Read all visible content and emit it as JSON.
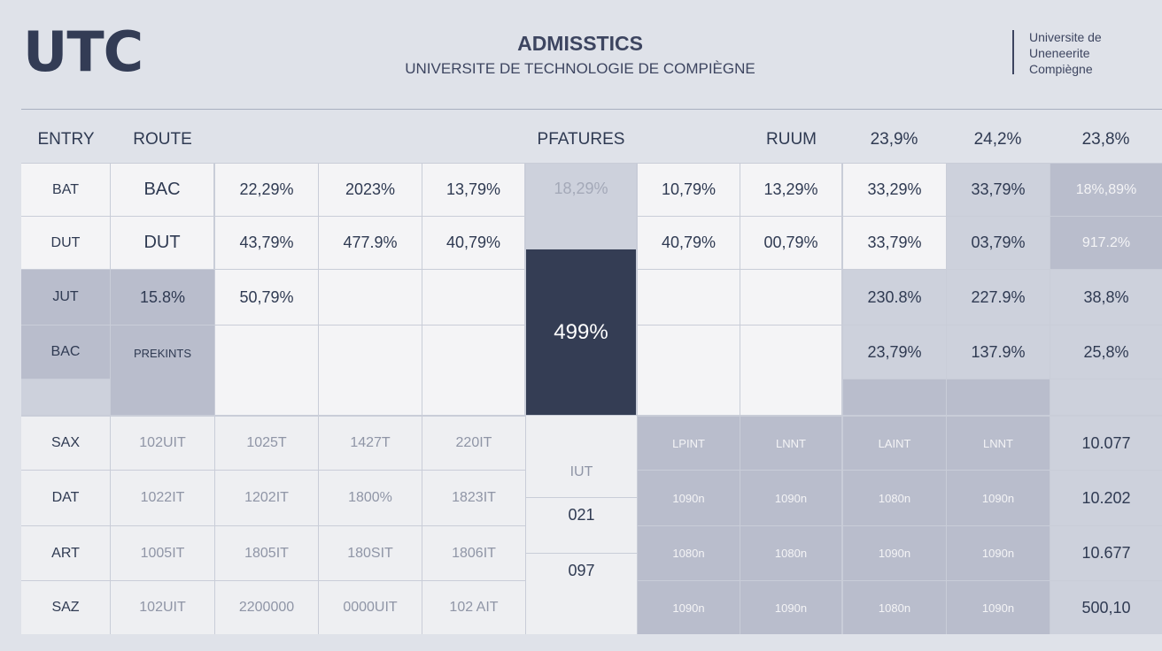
{
  "header": {
    "logo": "UTC",
    "title": "ADMISSTICS",
    "subtitle": "UNIVERSITE DE TECHNOLOGIE DE COMPIÈGNE",
    "university_lines": [
      "Universite de",
      "Uneneerite",
      "Compiègne"
    ]
  },
  "columns": [
    "ENTRY",
    "ROUTE",
    "PFATURES",
    "RUUM",
    "23,9%",
    "24,2%",
    "23,8%"
  ],
  "rows": {
    "r1": {
      "label": "BAT",
      "route": "BAC",
      "c2": "22,29%",
      "c3": "2023%",
      "c4": "13,79%",
      "c5": "18,29%",
      "c6": "10,79%",
      "c7": "13,29%",
      "c8": "33,29%",
      "c9": "33,79%",
      "c10": "18%,89%"
    },
    "r2": {
      "label": "DUT",
      "route": "DUT",
      "c2": "43,79%",
      "c3": "477.9%",
      "c4": "40,79%",
      "c6": "40,79%",
      "c7": "00,79%",
      "c8": "33,79%",
      "c9": "03,79%",
      "c10": "917.2%"
    },
    "r3": {
      "label": "JUT",
      "route": "15.8%",
      "c2": "50,79%",
      "c8": "230.8%",
      "c9": "227.9%",
      "c10": "38,8%"
    },
    "r4": {
      "label": "BAC",
      "route": "PREKINTS",
      "c8": "23,79%",
      "c9": "137.9%",
      "c10": "25,8%"
    },
    "center_value": "499%",
    "lower": [
      {
        "label": "SAX",
        "c1": "102UIT",
        "c2": "1025T",
        "c3": "1427T",
        "c4": "220IT",
        "c5": "",
        "c6": "LPINT",
        "c7": "LNNT",
        "c8": "LAINT",
        "c9": "LNNT",
        "c10": "10.077"
      },
      {
        "label": "DAT",
        "c1": "1022IT",
        "c2": "1202IT",
        "c3": "1800%",
        "c4": "1823IT",
        "c5": "021",
        "c6": "1090n",
        "c7": "1090n",
        "c8": "1080n",
        "c9": "1090n",
        "c10": "10.202"
      },
      {
        "label": "ART",
        "c1": "1005IT",
        "c2": "1805IT",
        "c3": "180SIT",
        "c4": "1806IT",
        "c5": "097",
        "c6": "1080n",
        "c7": "1080n",
        "c8": "1090n",
        "c9": "1090n",
        "c10": "10.677"
      },
      {
        "label": "SAZ",
        "c1": "102UIT",
        "c2": "2200000",
        "c3": "0000UIT",
        "c4": "102 AIT",
        "c5": "",
        "c6": "1090n",
        "c7": "1090n",
        "c8": "1080n",
        "c9": "1090n",
        "c10": "500,10"
      }
    ],
    "iut_label": "IUT"
  }
}
